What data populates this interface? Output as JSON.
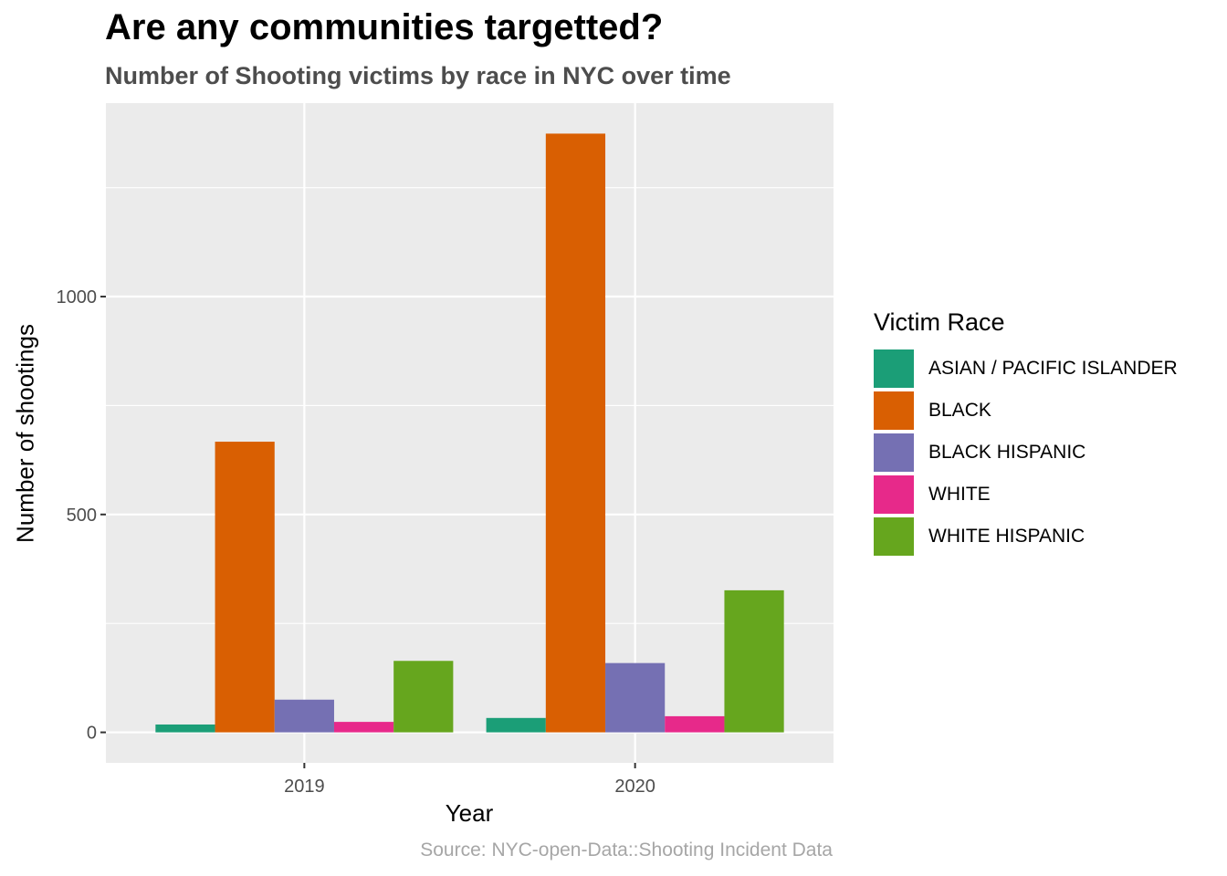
{
  "chart_data": {
    "type": "bar",
    "title": "Are any communities targetted?",
    "subtitle": "Number of Shooting victims by race in NYC over time",
    "xlabel": "Year",
    "ylabel": "Number of shootings",
    "caption": "Source: NYC-open-Data::Shooting Incident Data",
    "legend_title": "Victim Race",
    "legend_position": "right",
    "categories": [
      "2019",
      "2020"
    ],
    "series": [
      {
        "name": "ASIAN / PACIFIC ISLANDER",
        "color": "#1b9e77",
        "values": [
          18,
          33
        ]
      },
      {
        "name": "BLACK",
        "color": "#d95f02",
        "values": [
          667,
          1374
        ]
      },
      {
        "name": "BLACK HISPANIC",
        "color": "#7570b3",
        "values": [
          75,
          159
        ]
      },
      {
        "name": "WHITE",
        "color": "#e7298a",
        "values": [
          24,
          37
        ]
      },
      {
        "name": "WHITE HISPANIC",
        "color": "#66a61e",
        "values": [
          164,
          326
        ]
      }
    ],
    "y_ticks": [
      0,
      500,
      1000
    ],
    "ylim": [
      -70,
      1444
    ],
    "grid": true,
    "panel_background": "#ebebeb"
  }
}
